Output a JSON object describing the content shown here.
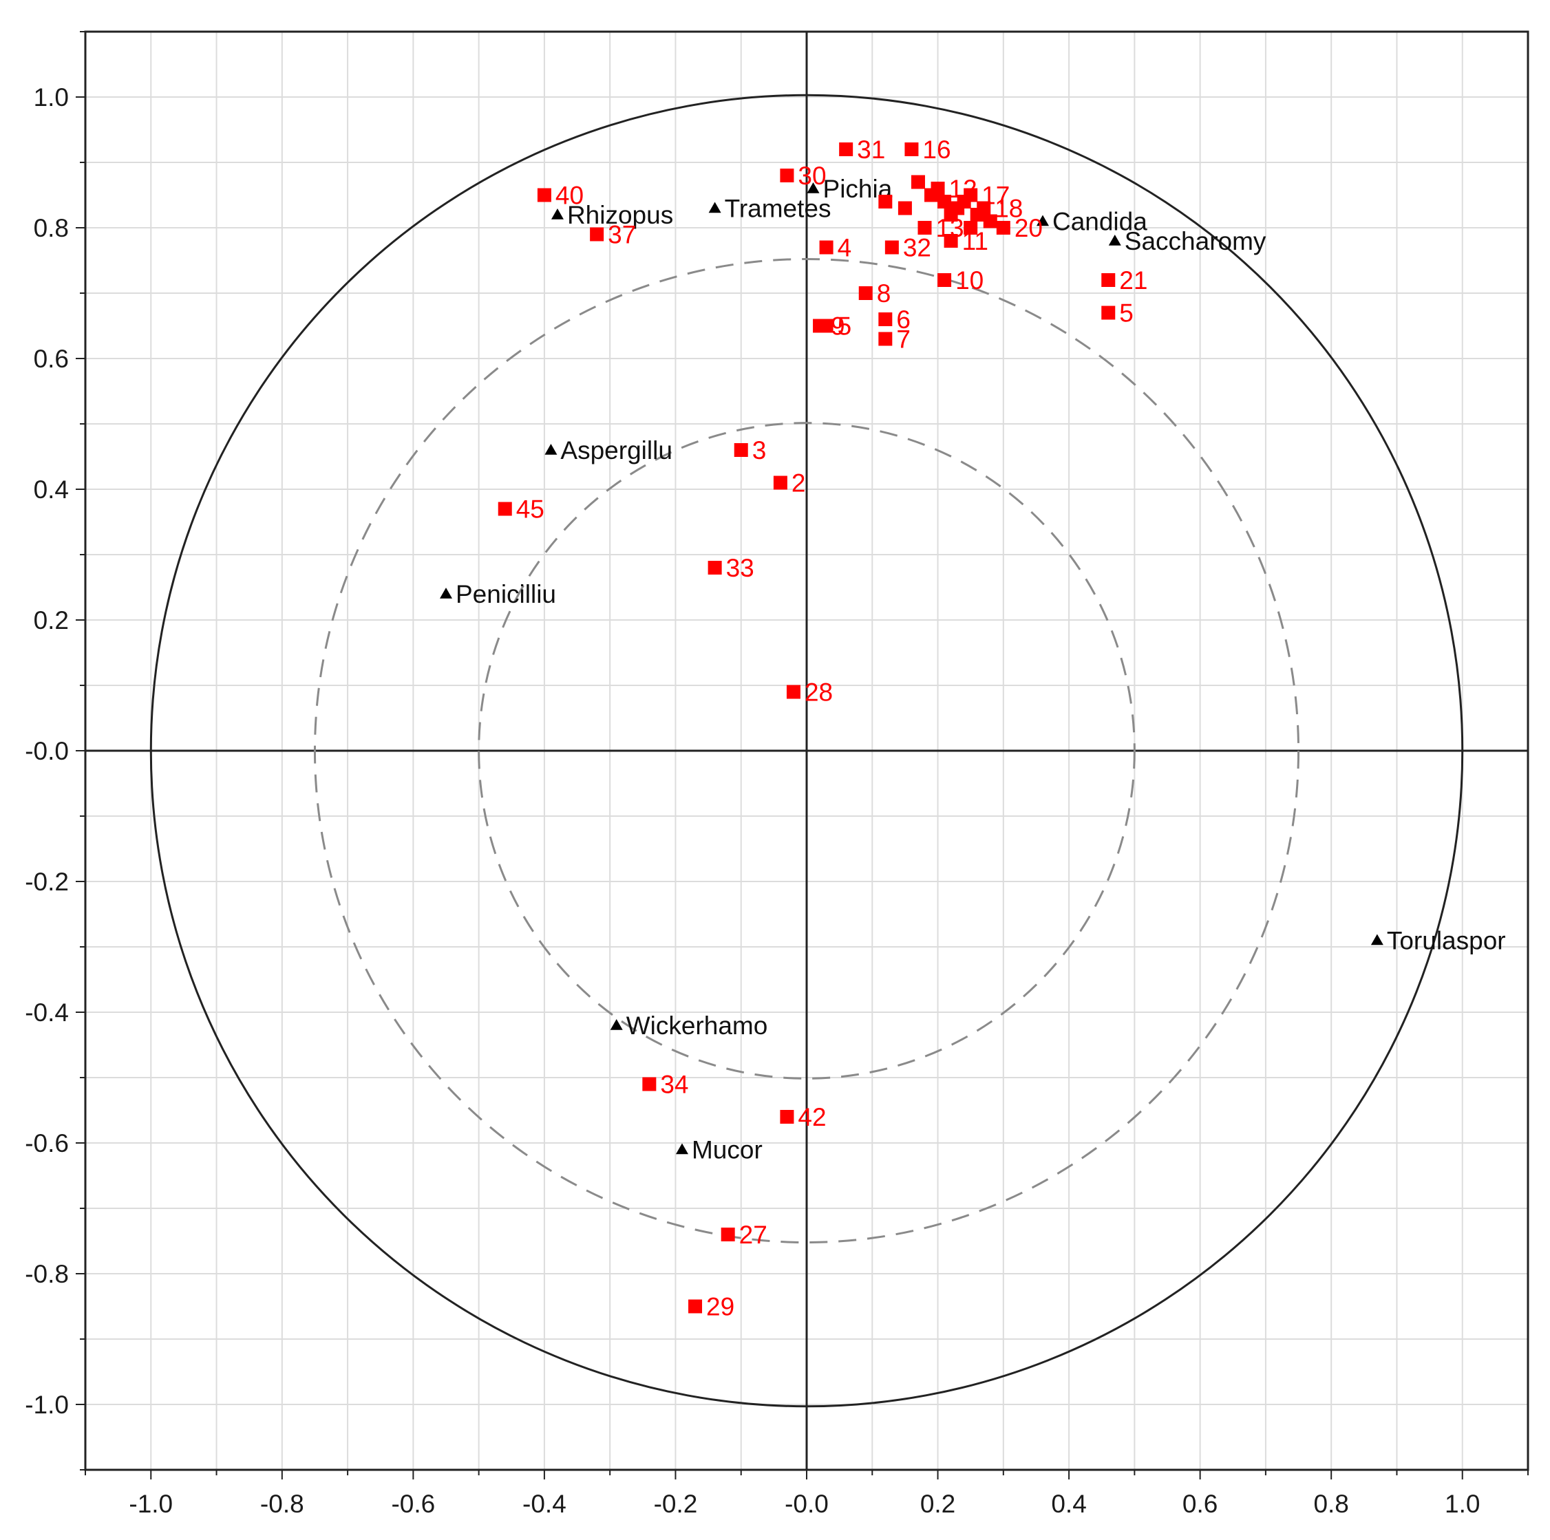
{
  "chart_data": {
    "type": "scatter",
    "title": "",
    "xlabel": "",
    "ylabel": "",
    "xlim": [
      -1.1,
      1.1
    ],
    "ylim": [
      -1.1,
      1.1
    ],
    "grid": true,
    "x_ticks": [
      "-1.0",
      "-0.8",
      "-0.6",
      "-0.4",
      "-0.2",
      "-0.0",
      "0.2",
      "0.4",
      "0.6",
      "0.8",
      "1.0"
    ],
    "y_ticks": [
      "1.0",
      "0.8",
      "0.6",
      "0.4",
      "0.2",
      "-0.0",
      "-0.2",
      "-0.4",
      "-0.6",
      "-0.8",
      "-1.0"
    ],
    "correlation_circles": [
      {
        "radius": 1.0,
        "style": "solid"
      },
      {
        "radius": 0.75,
        "style": "dashed"
      },
      {
        "radius": 0.5,
        "style": "dashed"
      }
    ],
    "series": [
      {
        "marker": "triangle",
        "color": "#000000",
        "points": [
          {
            "label": "Rhizopus",
            "x": -0.38,
            "y": 0.82
          },
          {
            "label": "Trametes",
            "x": -0.14,
            "y": 0.83
          },
          {
            "label": "Pichia",
            "x": 0.01,
            "y": 0.86
          },
          {
            "label": "Candida",
            "x": 0.36,
            "y": 0.81
          },
          {
            "label": "Saccharomy",
            "x": 0.47,
            "y": 0.78
          },
          {
            "label": "Aspergillu",
            "x": -0.39,
            "y": 0.46
          },
          {
            "label": "Penicilliu",
            "x": -0.55,
            "y": 0.24
          },
          {
            "label": "Torulaspor",
            "x": 0.87,
            "y": -0.29
          },
          {
            "label": "Wickerhamo",
            "x": -0.29,
            "y": -0.42
          },
          {
            "label": "Mucor",
            "x": -0.19,
            "y": -0.61
          }
        ]
      },
      {
        "marker": "square",
        "color": "#ff0000",
        "points": [
          {
            "label": "31",
            "x": 0.06,
            "y": 0.92
          },
          {
            "label": "16",
            "x": 0.16,
            "y": 0.92
          },
          {
            "label": "30",
            "x": -0.03,
            "y": 0.88
          },
          {
            "label": "40",
            "x": -0.4,
            "y": 0.85
          },
          {
            "label": "37",
            "x": -0.32,
            "y": 0.79
          },
          {
            "label": "4",
            "x": 0.03,
            "y": 0.77
          },
          {
            "label": "32",
            "x": 0.13,
            "y": 0.77
          },
          {
            "label": "11",
            "x": 0.22,
            "y": 0.78
          },
          {
            "label": "10",
            "x": 0.21,
            "y": 0.72
          },
          {
            "label": "21",
            "x": 0.46,
            "y": 0.72
          },
          {
            "label": "5",
            "x": 0.46,
            "y": 0.67
          },
          {
            "label": "8",
            "x": 0.09,
            "y": 0.7
          },
          {
            "label": "6",
            "x": 0.12,
            "y": 0.66
          },
          {
            "label": "7",
            "x": 0.12,
            "y": 0.63
          },
          {
            "label": "9",
            "x": 0.02,
            "y": 0.65
          },
          {
            "label": "5",
            "x": 0.03,
            "y": 0.65
          },
          {
            "label": "3",
            "x": -0.1,
            "y": 0.46
          },
          {
            "label": "2",
            "x": -0.04,
            "y": 0.41
          },
          {
            "label": "45",
            "x": -0.46,
            "y": 0.37
          },
          {
            "label": "33",
            "x": -0.14,
            "y": 0.28
          },
          {
            "label": "28",
            "x": -0.02,
            "y": 0.09
          },
          {
            "label": "34",
            "x": -0.24,
            "y": -0.51
          },
          {
            "label": "42",
            "x": -0.03,
            "y": -0.56
          },
          {
            "label": "27",
            "x": -0.12,
            "y": -0.74
          },
          {
            "label": "29",
            "x": -0.17,
            "y": -0.85
          },
          {
            "label": "13",
            "x": 0.18,
            "y": 0.8
          },
          {
            "label": "12",
            "x": 0.2,
            "y": 0.86
          },
          {
            "label": "17",
            "x": 0.25,
            "y": 0.85
          },
          {
            "label": "18",
            "x": 0.27,
            "y": 0.83
          },
          {
            "label": "20",
            "x": 0.3,
            "y": 0.8
          },
          {
            "label": "",
            "x": 0.17,
            "y": 0.87
          },
          {
            "label": "",
            "x": 0.12,
            "y": 0.84
          },
          {
            "label": "",
            "x": 0.15,
            "y": 0.83
          },
          {
            "label": "",
            "x": 0.19,
            "y": 0.85
          },
          {
            "label": "",
            "x": 0.21,
            "y": 0.84
          },
          {
            "label": "",
            "x": 0.23,
            "y": 0.83
          },
          {
            "label": "",
            "x": 0.24,
            "y": 0.84
          },
          {
            "label": "",
            "x": 0.22,
            "y": 0.82
          },
          {
            "label": "",
            "x": 0.26,
            "y": 0.82
          },
          {
            "label": "",
            "x": 0.28,
            "y": 0.81
          },
          {
            "label": "",
            "x": 0.25,
            "y": 0.8
          }
        ]
      }
    ]
  }
}
